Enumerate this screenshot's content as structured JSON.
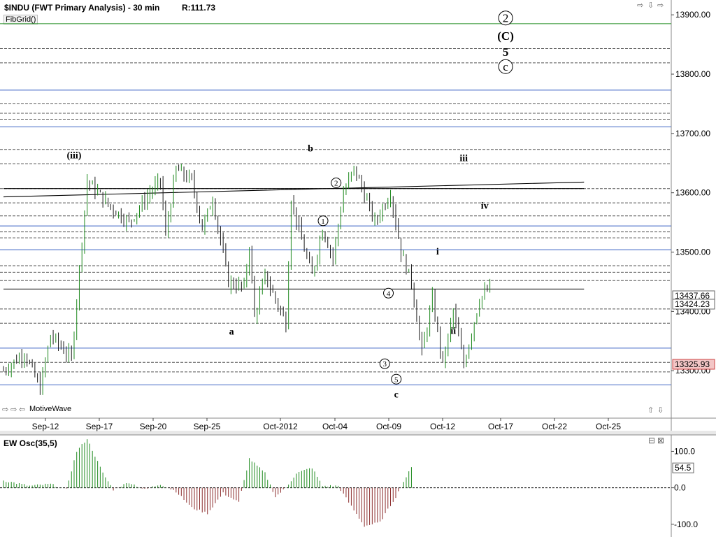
{
  "header": {
    "title": "$INDU (FWT Primary Analysis) - 30 min",
    "range": "R:111.73",
    "study": "FibGrid()",
    "brand": "MotiveWave"
  },
  "icons": {
    "top_right": [
      "arrow-right-icon",
      "arrow-down-icon",
      "arrow-right-icon"
    ],
    "bottom_right": [
      "arrow-up-icon",
      "arrow-down-icon"
    ],
    "bottom_left": [
      "arrow-right-icon",
      "arrow-right-icon",
      "arrow-left-icon"
    ],
    "osc": [
      "maximize-icon",
      "close-icon"
    ]
  },
  "chart_data": [
    {
      "type": "ohlc",
      "title": "$INDU (FWT Primary Analysis) - 30 min",
      "ylim": [
        13220,
        13925
      ],
      "y_ticks": [
        13300,
        13400,
        13500,
        13600,
        13700,
        13800,
        13900
      ],
      "y_tick_labels": [
        "13300.00",
        "13400.00",
        "13500.00",
        "13600.00",
        "13700.00",
        "13800.00",
        "13900.00"
      ],
      "x_ticks": [
        "Sep-12",
        "Sep-17",
        "Sep-20",
        "Sep-25",
        "Oct-2012",
        "Oct-04",
        "Oct-09",
        "Oct-12",
        "Oct-17",
        "Oct-22",
        "Oct-25"
      ],
      "colors": {
        "up": "#1f8a1f",
        "down": "#1a1a1a",
        "fib_solid": "#3b63c4",
        "fib_dashed": "#555555"
      },
      "price_path": [
        [
          0,
          13300
        ],
        [
          4,
          13330
        ],
        [
          7,
          13270
        ],
        [
          9,
          13360
        ],
        [
          13,
          13320
        ],
        [
          16,
          13620
        ],
        [
          20,
          13580
        ],
        [
          24,
          13550
        ],
        [
          28,
          13600
        ],
        [
          30,
          13620
        ],
        [
          31,
          13530
        ],
        [
          33,
          13640
        ],
        [
          36,
          13620
        ],
        [
          38,
          13540
        ],
        [
          40,
          13590
        ],
        [
          43,
          13450
        ],
        [
          46,
          13440
        ],
        [
          47,
          13510
        ],
        [
          48,
          13390
        ],
        [
          50,
          13460
        ],
        [
          54,
          13380
        ],
        [
          55,
          13590
        ],
        [
          57,
          13520
        ],
        [
          59,
          13460
        ],
        [
          61,
          13540
        ],
        [
          63,
          13490
        ],
        [
          65,
          13600
        ],
        [
          67,
          13640
        ],
        [
          68,
          13620
        ],
        [
          71,
          13550
        ],
        [
          74,
          13600
        ],
        [
          76,
          13500
        ],
        [
          78,
          13450
        ],
        [
          80,
          13330
        ],
        [
          82,
          13420
        ],
        [
          84,
          13310
        ],
        [
          86,
          13400
        ],
        [
          88,
          13310
        ],
        [
          91,
          13420
        ],
        [
          93,
          13440
        ]
      ],
      "fib_levels": [
        {
          "price": 13885,
          "style": "solid",
          "color": "#1e8c1e"
        },
        {
          "price": 13843,
          "style": "dashed"
        },
        {
          "price": 13819,
          "style": "dashed"
        },
        {
          "price": 13773,
          "style": "solid"
        },
        {
          "price": 13750,
          "style": "dashed"
        },
        {
          "price": 13734,
          "style": "dashed"
        },
        {
          "price": 13724,
          "style": "dashed"
        },
        {
          "price": 13711,
          "style": "solid"
        },
        {
          "price": 13673,
          "style": "dashed"
        },
        {
          "price": 13649,
          "style": "dashed"
        },
        {
          "price": 13607,
          "style": "dashed"
        },
        {
          "price": 13583,
          "style": "dashed"
        },
        {
          "price": 13561,
          "style": "dashed"
        },
        {
          "price": 13544,
          "style": "solid"
        },
        {
          "price": 13534,
          "style": "dashed"
        },
        {
          "price": 13524,
          "style": "dashed"
        },
        {
          "price": 13504,
          "style": "solid"
        },
        {
          "price": 13477,
          "style": "dashed"
        },
        {
          "price": 13466,
          "style": "dashed"
        },
        {
          "price": 13452,
          "style": "dashed"
        },
        {
          "price": 13404,
          "style": "dashed"
        },
        {
          "price": 13380,
          "style": "dashed"
        },
        {
          "price": 13338,
          "style": "solid"
        },
        {
          "price": 13314,
          "style": "dashed"
        },
        {
          "price": 13298,
          "style": "dashed"
        },
        {
          "price": 13276,
          "style": "solid"
        }
      ],
      "trend_lines": [
        {
          "x": [
            0,
            111
          ],
          "y": [
            13593,
            13618
          ],
          "color": "#000000"
        },
        {
          "x": [
            0,
            111
          ],
          "y": [
            13607,
            13607
          ],
          "color": "#000000"
        },
        {
          "x": [
            0,
            111
          ],
          "y": [
            13437.66,
            13437.66
          ],
          "color": "#000000"
        }
      ],
      "wave_labels": [
        {
          "text": "(iii)",
          "x": 13.5,
          "y": 13658
        },
        {
          "text": "a",
          "x": 43.6,
          "y": 13361
        },
        {
          "text": "b",
          "x": 58.7,
          "y": 13670
        },
        {
          "text": "1",
          "x": 61.1,
          "y": 13548,
          "circled": true
        },
        {
          "text": "2",
          "x": 63.6,
          "y": 13612,
          "circled": true
        },
        {
          "text": "4",
          "x": 73.6,
          "y": 13426,
          "circled": true
        },
        {
          "text": "3",
          "x": 72.9,
          "y": 13307,
          "circled": true
        },
        {
          "text": "5",
          "x": 75.1,
          "y": 13281,
          "circled": true
        },
        {
          "text": "c",
          "x": 75.1,
          "y": 13255
        },
        {
          "text": "iii",
          "x": 88,
          "y": 13653
        },
        {
          "text": "iv",
          "x": 92,
          "y": 13573
        },
        {
          "text": "i",
          "x": 83,
          "y": 13496
        },
        {
          "text": "ii",
          "x": 86,
          "y": 13362
        },
        {
          "text": "2",
          "x": 96,
          "y": 13890,
          "circled": true
        },
        {
          "text": "(C)",
          "x": 96,
          "y": 13860
        },
        {
          "text": "5",
          "x": 96,
          "y": 13833
        },
        {
          "text": "c",
          "x": 96,
          "y": 13808,
          "circled": true
        }
      ],
      "price_markers": [
        {
          "label": "13437.66",
          "price": 13437.66,
          "style": "outline"
        },
        {
          "label": "13424.23",
          "price": 13424.23,
          "style": "outline"
        },
        {
          "label": "13325.93",
          "price": 13325.93,
          "style": "red"
        }
      ]
    },
    {
      "type": "bar",
      "title": "EW Osc(35,5)",
      "ylim": [
        -135,
        145
      ],
      "y_ticks": [
        100,
        0,
        -100
      ],
      "y_tick_labels": [
        "100.0",
        "0.0",
        "-100.0"
      ],
      "current_label": "54.5",
      "current_value": 54.5,
      "colors": {
        "positive": "#1f8a1f",
        "negative": "#8b2c2c"
      },
      "value_path": [
        [
          0,
          20
        ],
        [
          5,
          5
        ],
        [
          9,
          10
        ],
        [
          12,
          -5
        ],
        [
          14,
          100
        ],
        [
          16,
          135
        ],
        [
          19,
          40
        ],
        [
          21,
          -5
        ],
        [
          24,
          15
        ],
        [
          27,
          -5
        ],
        [
          30,
          10
        ],
        [
          33,
          -10
        ],
        [
          36,
          -55
        ],
        [
          39,
          -70
        ],
        [
          42,
          -15
        ],
        [
          45,
          -40
        ],
        [
          47,
          80
        ],
        [
          50,
          40
        ],
        [
          52,
          -25
        ],
        [
          54,
          0
        ],
        [
          56,
          40
        ],
        [
          59,
          55
        ],
        [
          61,
          5
        ],
        [
          64,
          5
        ],
        [
          66,
          -40
        ],
        [
          69,
          -105
        ],
        [
          72,
          -95
        ],
        [
          75,
          -25
        ],
        [
          77,
          30
        ],
        [
          78,
          55
        ]
      ]
    }
  ]
}
